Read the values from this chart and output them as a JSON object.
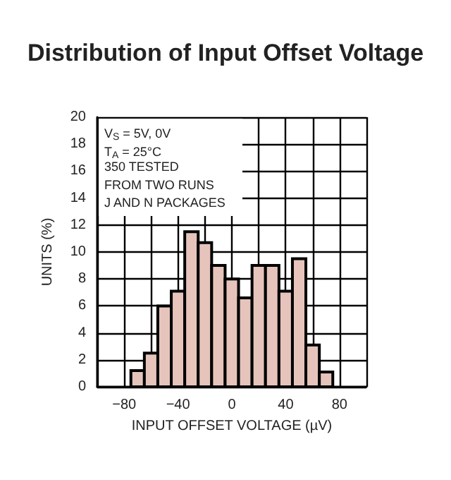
{
  "chart_data": {
    "type": "histogram",
    "title": "Distribution of Input Offset Voltage",
    "xlabel": "INPUT OFFSET VOLTAGE (µV)",
    "ylabel": "UNITS (%)",
    "annotations": [
      "V$_{S}$ = 5V, 0V",
      "T$_{A}$ = 25°C",
      "350 TESTED",
      "FROM TWO RUNS",
      "J AND N PACKAGES"
    ],
    "bins": [
      -75,
      -65,
      -55,
      -45,
      -35,
      -25,
      -15,
      -5,
      5,
      15,
      25,
      35,
      45,
      55,
      65,
      75
    ],
    "values": [
      1.2,
      2.5,
      6.0,
      7.1,
      11.5,
      10.7,
      9.0,
      8.0,
      6.6,
      9.0,
      9.0,
      7.1,
      9.5,
      3.1,
      1.1
    ],
    "color": "#e6c4bc",
    "xlim": [
      -100,
      100
    ],
    "xticks": [
      {
        "value": -100,
        "label": null
      },
      -80,
      {
        "value": -60,
        "label": null
      },
      -40,
      {
        "value": -20,
        "label": null
      },
      0,
      {
        "value": 20,
        "label": null
      },
      40,
      {
        "value": 60,
        "label": null
      },
      80,
      {
        "value": 100,
        "label": null
      }
    ],
    "ylim": [
      0,
      20
    ],
    "yticks": [
      0,
      2,
      4,
      6,
      8,
      10,
      12,
      14,
      16,
      18,
      20
    ],
    "grid": true
  }
}
